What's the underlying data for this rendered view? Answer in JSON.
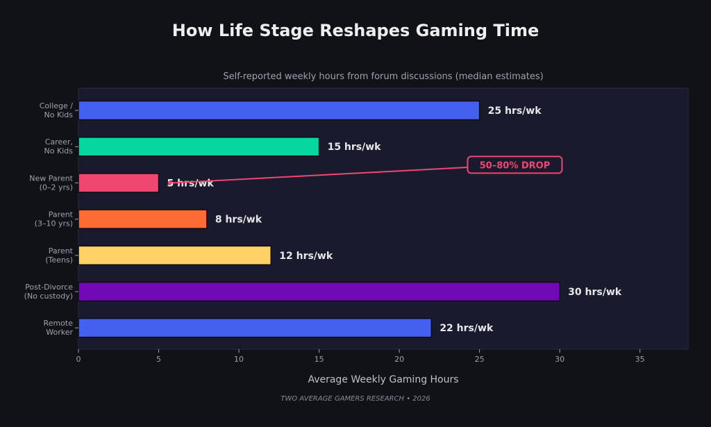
{
  "chart_data": {
    "type": "bar",
    "orientation": "horizontal",
    "title": "How Life Stage Reshapes Gaming Time",
    "subtitle": "Self-reported weekly hours from forum discussions (median estimates)",
    "xlabel": "Average Weekly Gaming Hours",
    "ylabel": "",
    "footer": "TWO AVERAGE GAMERS RESEARCH • 2026",
    "xlim": [
      0,
      38
    ],
    "xticks": [
      0,
      5,
      10,
      15,
      20,
      25,
      30,
      35
    ],
    "value_suffix": " hrs/wk",
    "grid": false,
    "categories": [
      [
        "College /",
        "No Kids"
      ],
      [
        "Career,",
        "No Kids"
      ],
      [
        "New Parent",
        "(0–2 yrs)"
      ],
      [
        "Parent",
        "(3–10 yrs)"
      ],
      [
        "Parent",
        "(Teens)"
      ],
      [
        "Post-Divorce",
        "(No custody)"
      ],
      [
        "Remote",
        "Worker"
      ]
    ],
    "values": [
      25,
      15,
      5,
      8,
      12,
      30,
      22
    ],
    "colors": [
      "#4361ee",
      "#06d6a0",
      "#ef476f",
      "#ff6b35",
      "#ffd166",
      "#7209b7",
      "#4361ee"
    ],
    "annotation": {
      "text": "50–80% DROP",
      "target_category_index": 2,
      "target_value": 5.7,
      "label_x_value": 27.2,
      "color": "#ef476f"
    }
  },
  "colors": {
    "background": "#111118",
    "plot_background": "#1a1a2e",
    "title": "#eeeeee",
    "muted": "#a0a0b0",
    "value_label": "#e8e8e8"
  }
}
